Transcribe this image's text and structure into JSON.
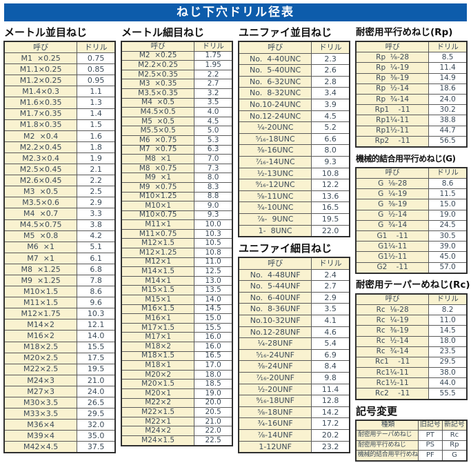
{
  "title": "ねじ下穴ドリル径表",
  "colors": {
    "title_bar_blue": "#0d5cab",
    "cell_cream": "#f9f2d0",
    "table_text": "#3c4b59",
    "border": "#5a5a5a"
  },
  "headers": {
    "name": "呼び",
    "drill": "ドリル"
  },
  "sections": {
    "metric_coarse": {
      "title": "メートル並目ねじ",
      "rows": [
        [
          "M1  ×0.25",
          "0.75"
        ],
        [
          "M1.1×0.25",
          "0.85"
        ],
        [
          "M1.2×0.25",
          "0.95"
        ],
        [
          "M1.4×0.3",
          "1.1"
        ],
        [
          "M1.6×0.35",
          "1.3"
        ],
        [
          "M1.7×0.35",
          "1.4"
        ],
        [
          "M1.8×0.35",
          "1.5"
        ],
        [
          "M2  ×0.4",
          "1.6"
        ],
        [
          "M2.2×0.45",
          "1.8"
        ],
        [
          "M2.3×0.4",
          "1.9"
        ],
        [
          "M2.5×0.45",
          "2.1"
        ],
        [
          "M2.6×0.45",
          "2.2"
        ],
        [
          "M3  ×0.5",
          "2.5"
        ],
        [
          "M3.5×0.6",
          "2.9"
        ],
        [
          "M4  ×0.7",
          "3.3"
        ],
        [
          "M4.5×0.75",
          "3.8"
        ],
        [
          "M5  ×0.8",
          "4.2"
        ],
        [
          "M6  ×1",
          "5.1"
        ],
        [
          "M7  ×1",
          "6.1"
        ],
        [
          "M8  ×1.25",
          "6.8"
        ],
        [
          "M9  ×1.25",
          "7.8"
        ],
        [
          "M10×1.5",
          "8.6"
        ],
        [
          "M11×1.5",
          "9.6"
        ],
        [
          "M12×1.75",
          "10.3"
        ],
        [
          "M14×2",
          "12.1"
        ],
        [
          "M16×2",
          "14.0"
        ],
        [
          "M18×2.5",
          "15.5"
        ],
        [
          "M20×2.5",
          "17.5"
        ],
        [
          "M22×2.5",
          "19.5"
        ],
        [
          "M24×3",
          "21.0"
        ],
        [
          "M27×3",
          "24.0"
        ],
        [
          "M30×3.5",
          "26.5"
        ],
        [
          "M33×3.5",
          "29.5"
        ],
        [
          "M36×4",
          "32.0"
        ],
        [
          "M39×4",
          "35.0"
        ],
        [
          "M42×4.5",
          "37.5"
        ]
      ]
    },
    "metric_fine": {
      "title": "メートル細目ねじ",
      "rows": [
        [
          "M2  ×0.25",
          "1.75"
        ],
        [
          "M2.2×0.25",
          "1.95"
        ],
        [
          "M2.5×0.35",
          "2.2"
        ],
        [
          "M3  ×0.35",
          "2.7"
        ],
        [
          "M3.5×0.35",
          "3.2"
        ],
        [
          "M4  ×0.5",
          "3.5"
        ],
        [
          "M4.5×0.5",
          "4.0"
        ],
        [
          "M5  ×0.5",
          "4.5"
        ],
        [
          "M5.5×0.5",
          "5.0"
        ],
        [
          "M6  ×0.75",
          "5.3"
        ],
        [
          "M7  ×0.75",
          "6.3"
        ],
        [
          "M8  ×1",
          "7.0"
        ],
        [
          "M8  ×0.75",
          "7.3"
        ],
        [
          "M9  ×1",
          "8.0"
        ],
        [
          "M9  ×0.75",
          "8.3"
        ],
        [
          "M10×1.25",
          "8.8"
        ],
        [
          "M10×1",
          "9.0"
        ],
        [
          "M10×0.75",
          "9.3"
        ],
        [
          "M11×1",
          "10.0"
        ],
        [
          "M11×0.75",
          "10.3"
        ],
        [
          "M12×1.5",
          "10.5"
        ],
        [
          "M12×1.25",
          "10.8"
        ],
        [
          "M12×1",
          "11.0"
        ],
        [
          "M14×1.5",
          "12.5"
        ],
        [
          "M14×1",
          "13.0"
        ],
        [
          "M15×1.5",
          "13.5"
        ],
        [
          "M15×1",
          "14.0"
        ],
        [
          "M16×1.5",
          "14.5"
        ],
        [
          "M16×1",
          "15.0"
        ],
        [
          "M17×1.5",
          "15.5"
        ],
        [
          "M17×1",
          "16.0"
        ],
        [
          "M18×2",
          "16.0"
        ],
        [
          "M18×1.5",
          "16.5"
        ],
        [
          "M18×1",
          "17.0"
        ],
        [
          "M20×2",
          "18.0"
        ],
        [
          "M20×1.5",
          "18.5"
        ],
        [
          "M20×1",
          "19.0"
        ],
        [
          "M22×2",
          "20.0"
        ],
        [
          "M22×1.5",
          "20.5"
        ],
        [
          "M22×1",
          "21.0"
        ],
        [
          "M24×2",
          "22.0"
        ],
        [
          "M24×1.5",
          "22.5"
        ]
      ]
    },
    "unified_coarse": {
      "title": "ユニファイ並目ねじ",
      "rows": [
        [
          "No.  4-40UNC",
          "2.3"
        ],
        [
          "No.  5-40UNC",
          "2.6"
        ],
        [
          "No.  6-32UNC",
          "2.8"
        ],
        [
          "No.  8-32UNC",
          "3.4"
        ],
        [
          "No.10-24UNC",
          "3.9"
        ],
        [
          "No.12-24UNC",
          "4.5"
        ],
        [
          "¹⁄₄-20UNC",
          "5.2"
        ],
        [
          "⁵⁄₁₆-18UNC",
          "6.6"
        ],
        [
          "³⁄₈-16UNC",
          "8.0"
        ],
        [
          "⁷⁄₁₆-14UNC",
          "9.3"
        ],
        [
          "¹⁄₂-13UNC",
          "10.8"
        ],
        [
          "⁹⁄₁₆-12UNC",
          "12.2"
        ],
        [
          "⁵⁄₈-11UNC",
          "13.6"
        ],
        [
          "³⁄₄-10UNC",
          "16.5"
        ],
        [
          "⁷⁄₈-  9UNC",
          "19.5"
        ],
        [
          "1-  8UNC",
          "22.0"
        ]
      ]
    },
    "unified_fine": {
      "title": "ユニファイ細目ねじ",
      "rows": [
        [
          "No.  4-48UNF",
          "2.4"
        ],
        [
          "No.  5-44UNF",
          "2.7"
        ],
        [
          "No.  6-40UNF",
          "2.9"
        ],
        [
          "No.  8-36UNF",
          "3.5"
        ],
        [
          "No.10-32UNF",
          "4.1"
        ],
        [
          "No.12-28UNF",
          "4.6"
        ],
        [
          "¹⁄₄-28UNF",
          "5.4"
        ],
        [
          "⁵⁄₁₆-24UNF",
          "6.9"
        ],
        [
          "³⁄₈-24UNF",
          "8.4"
        ],
        [
          "⁷⁄₁₆-20UNF",
          "9.8"
        ],
        [
          "¹⁄₂-20UNF",
          "11.4"
        ],
        [
          "⁹⁄₁₆-18UNF",
          "12.8"
        ],
        [
          "⁵⁄₈-18UNF",
          "14.2"
        ],
        [
          "³⁄₄-16UNF",
          "17.2"
        ],
        [
          "⁷⁄₈-14UNF",
          "20.2"
        ],
        [
          "1-12UNF",
          "23.2"
        ]
      ]
    },
    "rp": {
      "title": "耐密用平行めねじ(Rp)",
      "rows": [
        [
          "Rp  ¹⁄₈-28",
          "8.5"
        ],
        [
          "Rp  ¹⁄₄-19",
          "11.4"
        ],
        [
          "Rp  ³⁄₈-19",
          "14.9"
        ],
        [
          "Rp  ¹⁄₂-14",
          "18.6"
        ],
        [
          "Rp  ³⁄₄-14",
          "24.0"
        ],
        [
          "Rp1    -11",
          "30.2"
        ],
        [
          "Rp1¹⁄₄-11",
          "38.8"
        ],
        [
          "Rp1¹⁄₂-11",
          "44.7"
        ],
        [
          "Rp2    -11",
          "56.5"
        ]
      ]
    },
    "g": {
      "title": "機械的結合用平行めねじ(G)",
      "rows": [
        [
          "G  ¹⁄₈-28",
          "8.6"
        ],
        [
          "G  ¹⁄₄-19",
          "11.5"
        ],
        [
          "G  ³⁄₈-19",
          "15.0"
        ],
        [
          "G  ¹⁄₂-14",
          "19.0"
        ],
        [
          "G  ³⁄₄-14",
          "24.5"
        ],
        [
          "G1    -11",
          "30.5"
        ],
        [
          "G1¹⁄₄-11",
          "39.0"
        ],
        [
          "G1¹⁄₂-11",
          "45.0"
        ],
        [
          "G2    -11",
          "57.0"
        ]
      ]
    },
    "rc": {
      "title": "耐密用テーパーめねじ(Rc)",
      "rows": [
        [
          "Rc  ¹⁄₈-28",
          "8.2"
        ],
        [
          "Rc  ¹⁄₄-19",
          "11.0"
        ],
        [
          "Rc  ³⁄₈-19",
          "14.5"
        ],
        [
          "Rc  ¹⁄₂-14",
          "18.0"
        ],
        [
          "Rc  ³⁄₄-14",
          "23.5"
        ],
        [
          "Rc1    -11",
          "29.5"
        ],
        [
          "Rc1¹⁄₄-11",
          "38.0"
        ],
        [
          "Rc1¹⁄₂-11",
          "44.0"
        ],
        [
          "Rc2    -11",
          "55.5"
        ]
      ]
    },
    "symbol_change": {
      "title": "記号変更",
      "headers": [
        "種類",
        "旧記号",
        "新記号"
      ],
      "rows": [
        [
          "耐密用テーパめねじ",
          "PT",
          "Rc"
        ],
        [
          "耐密用平行めねじ",
          "PS",
          "Rp"
        ],
        [
          "機械的結合用平行めねじ",
          "PF",
          "G"
        ]
      ]
    }
  }
}
